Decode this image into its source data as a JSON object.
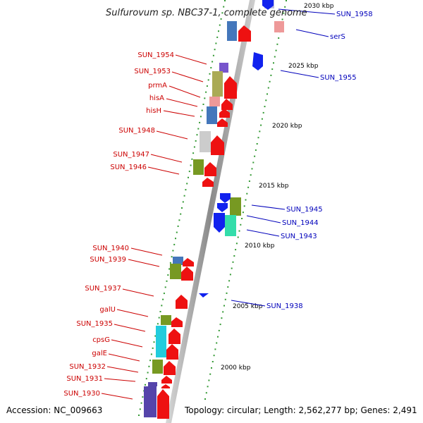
{
  "title": "Sulfurovum sp. NBC37-1, complete genome",
  "footer": {
    "accession": "Accession: NC_009663",
    "topology": "Topology: circular; Length: 2,562,277 bp; Genes: 2,491"
  },
  "colors": {
    "forward": "#ee1111",
    "reverse": "#1122ee",
    "label_forward": "#cc0000",
    "label_reverse": "#0000bb",
    "backbone": "#9a9a9a",
    "tick": "#339933"
  },
  "scale_labels": [
    "2000 kbp",
    "2005 kbp",
    "2010 kbp",
    "2015 kbp",
    "2020 kbp",
    "2025 kbp",
    "2030 kbp"
  ],
  "forward_labels": [
    "SUN_1954",
    "SUN_1953",
    "prmA",
    "hisA",
    "hisH",
    "SUN_1948",
    "SUN_1947",
    "SUN_1946",
    "SUN_1940",
    "SUN_1939",
    "SUN_1937",
    "galU",
    "SUN_1935",
    "cpsG",
    "galE",
    "SUN_1932",
    "SUN_1931",
    "SUN_1930"
  ],
  "reverse_labels": [
    "SUN_1958",
    "serS",
    "SUN_1955",
    "SUN_1945",
    "SUN_1944",
    "SUN_1943",
    "SUN_1938"
  ]
}
